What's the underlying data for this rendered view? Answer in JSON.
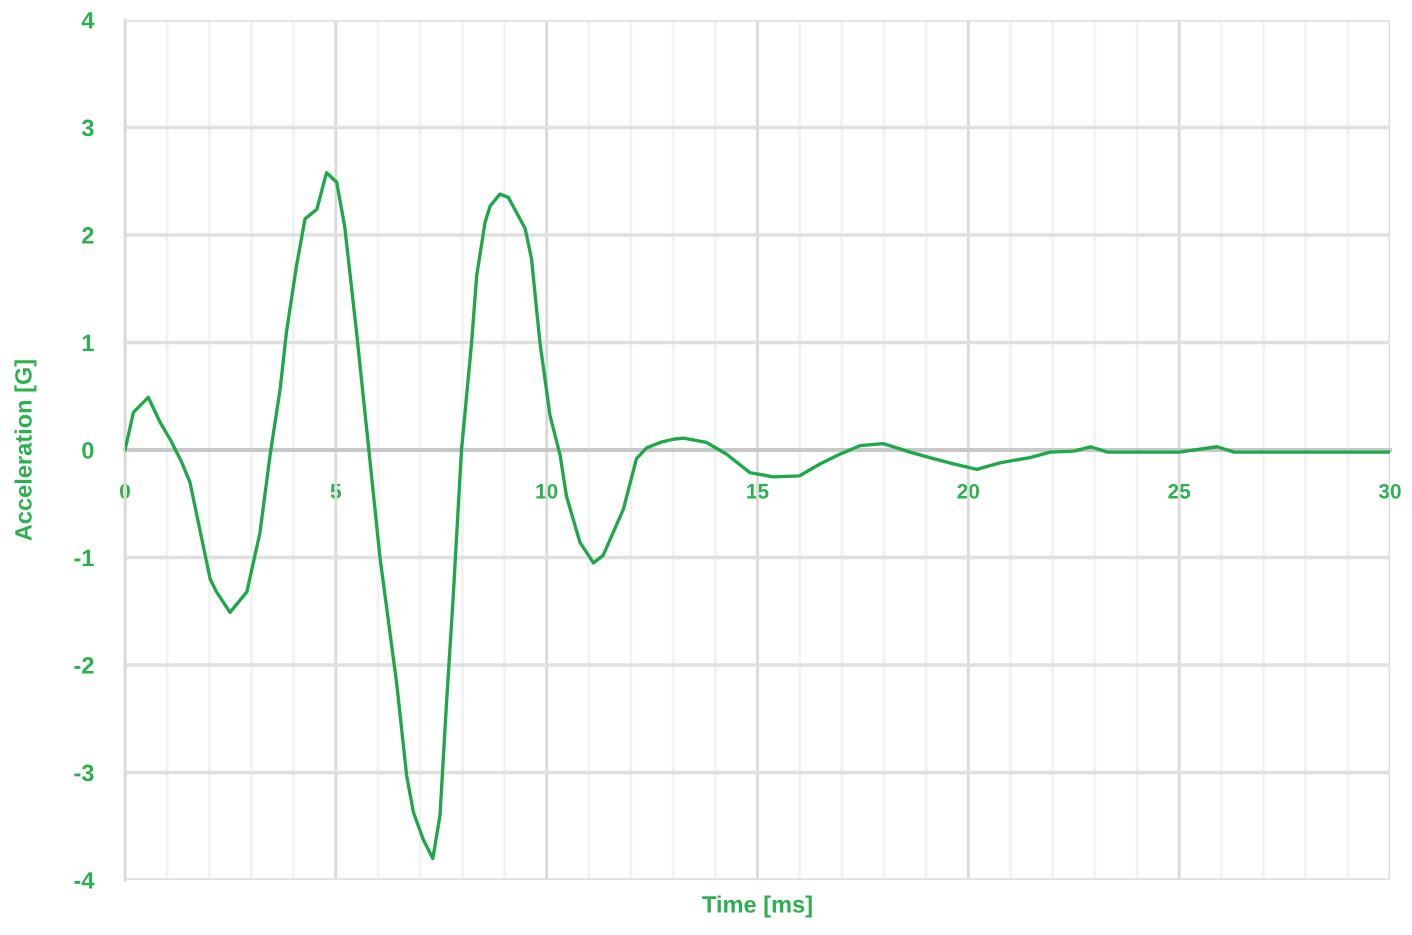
{
  "chart_data": {
    "type": "line",
    "xlabel": "Time [ms]",
    "ylabel": "Acceleration [G]",
    "xlim": [
      0,
      30
    ],
    "ylim": [
      -4,
      4
    ],
    "xticks": [
      0,
      {
        "value": 1,
        "label": null
      },
      {
        "value": 2,
        "label": null
      },
      {
        "value": 3,
        "label": null
      },
      {
        "value": 4,
        "label": null
      },
      5,
      {
        "value": 6,
        "label": null
      },
      {
        "value": 7,
        "label": null
      },
      {
        "value": 8,
        "label": null
      },
      {
        "value": 9,
        "label": null
      },
      10,
      {
        "value": 11,
        "label": null
      },
      {
        "value": 12,
        "label": null
      },
      {
        "value": 13,
        "label": null
      },
      {
        "value": 14,
        "label": null
      },
      15,
      {
        "value": 16,
        "label": null
      },
      {
        "value": 17,
        "label": null
      },
      {
        "value": 18,
        "label": null
      },
      {
        "value": 19,
        "label": null
      },
      20,
      {
        "value": 21,
        "label": null
      },
      {
        "value": 22,
        "label": null
      },
      {
        "value": 23,
        "label": null
      },
      {
        "value": 24,
        "label": null
      },
      25,
      {
        "value": 26,
        "label": null
      },
      {
        "value": 27,
        "label": null
      },
      {
        "value": 28,
        "label": null
      },
      {
        "value": 29,
        "label": null
      },
      30
    ],
    "yticks": [
      -4,
      -3,
      -2,
      -1,
      0,
      1,
      2,
      3,
      4
    ],
    "grid": true,
    "marker": "none",
    "line_style": "solid",
    "series": [
      {
        "color": "#1fa84a",
        "x": [
          0,
          0.2,
          0.55,
          0.83,
          1.07,
          1.34,
          1.54,
          2.02,
          2.17,
          2.49,
          2.89,
          3.2,
          3.44,
          3.68,
          3.83,
          4.07,
          4.27,
          4.55,
          4.78,
          5.02,
          5.21,
          5.49,
          5.73,
          6.05,
          6.44,
          6.68,
          6.84,
          7.07,
          7.3,
          7.47,
          7.63,
          7.78,
          7.98,
          8.22,
          8.34,
          8.54,
          8.66,
          8.89,
          9.09,
          9.49,
          9.64,
          9.84,
          10.08,
          10.32,
          10.47,
          10.79,
          11.11,
          11.34,
          11.82,
          12.13,
          12.37,
          12.69,
          13.0,
          13.24,
          13.79,
          14.27,
          14.82,
          15.37,
          16.0,
          16.48,
          16.95,
          17.43,
          17.98,
          18.62,
          19.17,
          19.65,
          20.2,
          20.75,
          21.46,
          21.94,
          22.5,
          22.9,
          23.3,
          24,
          25,
          25.9,
          26.3,
          27,
          28,
          29,
          30
        ],
        "values": [
          0,
          0.35,
          0.49,
          0.26,
          0.1,
          -0.11,
          -0.3,
          -1.2,
          -1.32,
          -1.51,
          -1.32,
          -0.77,
          -0.05,
          0.57,
          1.1,
          1.72,
          2.15,
          2.24,
          2.58,
          2.49,
          2.08,
          1.1,
          0.2,
          -1.01,
          -2.16,
          -3.03,
          -3.37,
          -3.62,
          -3.8,
          -3.4,
          -2.32,
          -1.39,
          0.0,
          1.0,
          1.62,
          2.12,
          2.27,
          2.38,
          2.35,
          2.06,
          1.78,
          1.0,
          0.32,
          -0.05,
          -0.43,
          -0.86,
          -1.05,
          -0.98,
          -0.55,
          -0.08,
          0.02,
          0.07,
          0.1,
          0.11,
          0.07,
          -0.04,
          -0.21,
          -0.25,
          -0.24,
          -0.13,
          -0.04,
          0.04,
          0.06,
          -0.02,
          -0.08,
          -0.13,
          -0.18,
          -0.12,
          -0.07,
          -0.02,
          -0.01,
          0.03,
          -0.02,
          -0.02,
          -0.02,
          0.03,
          -0.02,
          -0.02,
          -0.02,
          -0.02,
          -0.02
        ]
      }
    ]
  }
}
